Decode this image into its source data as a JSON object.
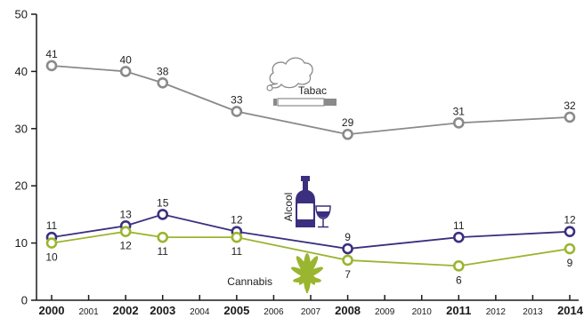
{
  "chart_data": {
    "type": "line",
    "ylim": [
      0,
      50
    ],
    "yticks": [
      0,
      10,
      20,
      30,
      40,
      50
    ],
    "xlim": [
      2000,
      2014
    ],
    "x_ticks": [
      {
        "year": 2000,
        "label": "2000",
        "major": true
      },
      {
        "year": 2001,
        "label": "2001",
        "major": false
      },
      {
        "year": 2002,
        "label": "2002",
        "major": true
      },
      {
        "year": 2003,
        "label": "2003",
        "major": true
      },
      {
        "year": 2004,
        "label": "2004",
        "major": false
      },
      {
        "year": 2005,
        "label": "2005",
        "major": true
      },
      {
        "year": 2006,
        "label": "2006",
        "major": false
      },
      {
        "year": 2007,
        "label": "2007",
        "major": false
      },
      {
        "year": 2008,
        "label": "2008",
        "major": true
      },
      {
        "year": 2009,
        "label": "2009",
        "major": false
      },
      {
        "year": 2010,
        "label": "2010",
        "major": false
      },
      {
        "year": 2011,
        "label": "2011",
        "major": true
      },
      {
        "year": 2012,
        "label": "2012",
        "major": false
      },
      {
        "year": 2013,
        "label": "2013",
        "major": false
      },
      {
        "year": 2014,
        "label": "2014",
        "major": true
      }
    ],
    "series": [
      {
        "name": "Tabac",
        "color": "#8a8a8a",
        "icon": "cigarette-smoke-icon",
        "label_position": "above",
        "points": [
          {
            "x": 2000,
            "y": 41
          },
          {
            "x": 2002,
            "y": 40
          },
          {
            "x": 2003,
            "y": 38
          },
          {
            "x": 2005,
            "y": 33
          },
          {
            "x": 2008,
            "y": 29
          },
          {
            "x": 2011,
            "y": 31
          },
          {
            "x": 2014,
            "y": 32
          }
        ]
      },
      {
        "name": "Alcool",
        "color": "#3b2f7f",
        "icon": "wine-bottle-glass-icon",
        "label_position": "above",
        "points": [
          {
            "x": 2000,
            "y": 11
          },
          {
            "x": 2002,
            "y": 13
          },
          {
            "x": 2003,
            "y": 15
          },
          {
            "x": 2005,
            "y": 12
          },
          {
            "x": 2008,
            "y": 9
          },
          {
            "x": 2011,
            "y": 11
          },
          {
            "x": 2014,
            "y": 12
          }
        ]
      },
      {
        "name": "Cannabis",
        "color": "#9ab52f",
        "icon": "cannabis-leaf-icon",
        "label_position": "below",
        "points": [
          {
            "x": 2000,
            "y": 10
          },
          {
            "x": 2002,
            "y": 12
          },
          {
            "x": 2003,
            "y": 11
          },
          {
            "x": 2005,
            "y": 11
          },
          {
            "x": 2008,
            "y": 7
          },
          {
            "x": 2011,
            "y": 6
          },
          {
            "x": 2014,
            "y": 9
          }
        ]
      }
    ],
    "axis_color": "#1a1a1a"
  }
}
